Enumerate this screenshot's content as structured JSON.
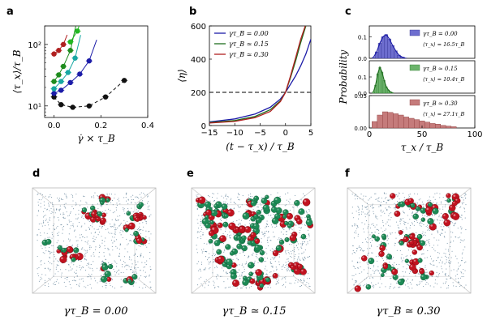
{
  "panel_labels": [
    "a",
    "b",
    "c",
    "d",
    "e",
    "f"
  ],
  "chart_data": [
    {
      "id": "a",
      "type": "scatter",
      "title": "",
      "xlabel": "γ̇ × τ_B",
      "ylabel": "⟨τ_x⟩/τ_B",
      "xlim": [
        -0.04,
        0.4
      ],
      "ylim": [
        6.5,
        200
      ],
      "yscale": "log",
      "xticks": [
        "0.0",
        "0.2",
        "0.4"
      ],
      "yticks": [
        "10¹",
        "10²"
      ],
      "series": [
        {
          "name": "black",
          "color": "#111111",
          "dashed": true,
          "x": [
            0.0,
            0.03,
            0.08,
            0.15,
            0.22,
            0.3
          ],
          "y": [
            14,
            10.5,
            9.5,
            10,
            14,
            26
          ]
        },
        {
          "name": "blue",
          "color": "#1c1ca8",
          "dashed": false,
          "x": [
            0.0,
            0.03,
            0.07,
            0.11,
            0.15
          ],
          "y": [
            16,
            18,
            24,
            33,
            54
          ]
        },
        {
          "name": "teal",
          "color": "#17a7a3",
          "dashed": false,
          "x": [
            0.0,
            0.03,
            0.06,
            0.09
          ],
          "y": [
            19,
            25,
            35,
            60
          ]
        },
        {
          "name": "green",
          "color": "#1e8c1e",
          "dashed": false,
          "x": [
            0.0,
            0.02,
            0.04,
            0.07
          ],
          "y": [
            25,
            32,
            44,
            80
          ]
        },
        {
          "name": "red",
          "color": "#b02020",
          "dashed": false,
          "x": [
            0.0,
            0.02,
            0.04
          ],
          "y": [
            70,
            80,
            100
          ]
        },
        {
          "name": "bright-green",
          "color": "#22b822",
          "dashed": false,
          "x": [
            0.07,
            0.1
          ],
          "y": [
            110,
            165
          ]
        }
      ]
    },
    {
      "id": "b",
      "type": "line",
      "title": "",
      "xlabel": "(t − τ_x) / τ_B",
      "ylabel": "⟨η⟩",
      "xlim": [
        -15,
        5
      ],
      "ylim": [
        0,
        600
      ],
      "xticks": [
        "−15",
        "−10",
        "−5",
        "0",
        "5"
      ],
      "yticks": [
        "0",
        "200",
        "400",
        "600"
      ],
      "threshold": 200,
      "legend": [
        "γτ_B = 0.00",
        "γτ_B ≃ 0.15",
        "γτ_B ≃ 0.30"
      ],
      "series": [
        {
          "name": "γτ_B = 0.00",
          "color": "#1c1ca8",
          "x": [
            -15,
            -10,
            -6,
            -3,
            -1,
            0,
            1,
            2,
            3,
            4,
            5
          ],
          "y": [
            22,
            40,
            70,
            110,
            160,
            200,
            250,
            300,
            360,
            430,
            520
          ]
        },
        {
          "name": "γτ_B ≃ 0.15",
          "color": "#1e6e1e",
          "x": [
            -15,
            -10,
            -6,
            -3,
            -1,
            0,
            1,
            2,
            3,
            4
          ],
          "y": [
            18,
            30,
            55,
            95,
            150,
            200,
            290,
            390,
            500,
            600
          ]
        },
        {
          "name": "γτ_B ≃ 0.30",
          "color": "#b02020",
          "x": [
            -15,
            -10,
            -6,
            -3,
            -1,
            0,
            1,
            2,
            3,
            3.9
          ],
          "y": [
            15,
            25,
            48,
            85,
            145,
            200,
            300,
            410,
            520,
            600
          ]
        }
      ]
    },
    {
      "id": "c",
      "type": "bar",
      "title": "",
      "xlabel": "τ_x / τ_B",
      "ylabel": "Probability",
      "xlim": [
        0,
        100
      ],
      "xticks": [
        "0",
        "50",
        "100"
      ],
      "panels": [
        {
          "name": "γτ_B = 0.00",
          "mean_label": "⟨τ_x⟩ = 16.5τ_B",
          "color": "#6e6ecf",
          "edge": "#2f2f8f",
          "fit_color": "#1c1ca8",
          "ylim": [
            0,
            0.15
          ],
          "yticks": [
            "0.0",
            "0.1"
          ],
          "bin_centers": [
            4,
            7,
            10,
            13,
            16,
            19,
            22,
            25,
            28,
            31,
            34
          ],
          "values": [
            0.005,
            0.03,
            0.07,
            0.1,
            0.11,
            0.09,
            0.06,
            0.035,
            0.015,
            0.006,
            0.002
          ]
        },
        {
          "name": "γτ_B ≃ 0.15",
          "mean_label": "⟨τ_x⟩ = 10.4τ_B",
          "color": "#6cb46c",
          "edge": "#2f7a2f",
          "fit_color": "#1e6e1e",
          "ylim": [
            0,
            0.2
          ],
          "yticks": [
            "0.0",
            "0.1"
          ],
          "bin_centers": [
            4,
            6,
            8,
            10,
            12,
            14,
            16,
            18,
            20,
            22
          ],
          "values": [
            0.01,
            0.05,
            0.12,
            0.16,
            0.13,
            0.08,
            0.04,
            0.02,
            0.008,
            0.003
          ]
        },
        {
          "name": "γτ_B ≃ 0.30",
          "mean_label": "⟨τ_x⟩ = 27.1τ_B",
          "color": "#c57b7b",
          "edge": "#8a3a3a",
          "fit_color": "#b02020",
          "ylim": [
            0,
            0.05
          ],
          "yticks": [
            "0.00",
            "0.05"
          ],
          "bin_centers": [
            5,
            10,
            15,
            20,
            25,
            30,
            35,
            40,
            45,
            50,
            55,
            60,
            65,
            70,
            75,
            80
          ],
          "values": [
            0.01,
            0.02,
            0.025,
            0.024,
            0.022,
            0.02,
            0.017,
            0.015,
            0.013,
            0.011,
            0.009,
            0.007,
            0.006,
            0.004,
            0.003,
            0.002
          ]
        }
      ]
    }
  ],
  "snapshots": [
    {
      "label": "γτ_B = 0.00",
      "seed": 11,
      "clusters": 18,
      "bigness": 0.9
    },
    {
      "label": "γτ_B ≃ 0.15",
      "seed": 23,
      "clusters": 30,
      "bigness": 1.5
    },
    {
      "label": "γτ_B ≃ 0.30",
      "seed": 37,
      "clusters": 22,
      "bigness": 1.2
    }
  ],
  "snapshot_captions": [
    "γτ_B = 0.00",
    "γτ_B ≃ 0.15",
    "γτ_B ≃ 0.30"
  ]
}
